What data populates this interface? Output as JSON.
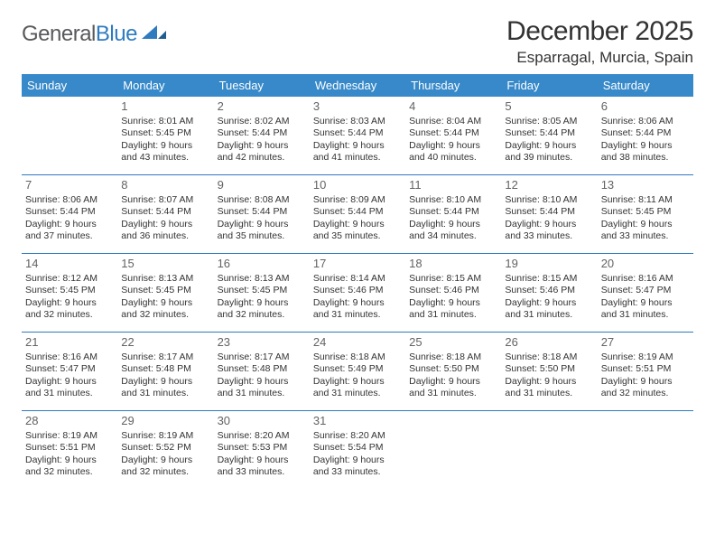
{
  "logo": {
    "text_part1": "General",
    "text_part2": "Blue"
  },
  "title": "December 2025",
  "subtitle": "Esparragal, Murcia, Spain",
  "colors": {
    "header_bg": "#3789c9",
    "header_text": "#ffffff",
    "divider": "#2f7bbf",
    "body_text": "#333333",
    "daynum": "#636363",
    "logo_gray": "#58595b",
    "logo_blue": "#2f7bbf"
  },
  "weekdays": [
    "Sunday",
    "Monday",
    "Tuesday",
    "Wednesday",
    "Thursday",
    "Friday",
    "Saturday"
  ],
  "weeks": [
    [
      {
        "empty": true
      },
      {
        "n": "1",
        "sr": "8:01 AM",
        "ss": "5:45 PM",
        "dl": "9 hours and 43 minutes."
      },
      {
        "n": "2",
        "sr": "8:02 AM",
        "ss": "5:44 PM",
        "dl": "9 hours and 42 minutes."
      },
      {
        "n": "3",
        "sr": "8:03 AM",
        "ss": "5:44 PM",
        "dl": "9 hours and 41 minutes."
      },
      {
        "n": "4",
        "sr": "8:04 AM",
        "ss": "5:44 PM",
        "dl": "9 hours and 40 minutes."
      },
      {
        "n": "5",
        "sr": "8:05 AM",
        "ss": "5:44 PM",
        "dl": "9 hours and 39 minutes."
      },
      {
        "n": "6",
        "sr": "8:06 AM",
        "ss": "5:44 PM",
        "dl": "9 hours and 38 minutes."
      }
    ],
    [
      {
        "n": "7",
        "sr": "8:06 AM",
        "ss": "5:44 PM",
        "dl": "9 hours and 37 minutes."
      },
      {
        "n": "8",
        "sr": "8:07 AM",
        "ss": "5:44 PM",
        "dl": "9 hours and 36 minutes."
      },
      {
        "n": "9",
        "sr": "8:08 AM",
        "ss": "5:44 PM",
        "dl": "9 hours and 35 minutes."
      },
      {
        "n": "10",
        "sr": "8:09 AM",
        "ss": "5:44 PM",
        "dl": "9 hours and 35 minutes."
      },
      {
        "n": "11",
        "sr": "8:10 AM",
        "ss": "5:44 PM",
        "dl": "9 hours and 34 minutes."
      },
      {
        "n": "12",
        "sr": "8:10 AM",
        "ss": "5:44 PM",
        "dl": "9 hours and 33 minutes."
      },
      {
        "n": "13",
        "sr": "8:11 AM",
        "ss": "5:45 PM",
        "dl": "9 hours and 33 minutes."
      }
    ],
    [
      {
        "n": "14",
        "sr": "8:12 AM",
        "ss": "5:45 PM",
        "dl": "9 hours and 32 minutes."
      },
      {
        "n": "15",
        "sr": "8:13 AM",
        "ss": "5:45 PM",
        "dl": "9 hours and 32 minutes."
      },
      {
        "n": "16",
        "sr": "8:13 AM",
        "ss": "5:45 PM",
        "dl": "9 hours and 32 minutes."
      },
      {
        "n": "17",
        "sr": "8:14 AM",
        "ss": "5:46 PM",
        "dl": "9 hours and 31 minutes."
      },
      {
        "n": "18",
        "sr": "8:15 AM",
        "ss": "5:46 PM",
        "dl": "9 hours and 31 minutes."
      },
      {
        "n": "19",
        "sr": "8:15 AM",
        "ss": "5:46 PM",
        "dl": "9 hours and 31 minutes."
      },
      {
        "n": "20",
        "sr": "8:16 AM",
        "ss": "5:47 PM",
        "dl": "9 hours and 31 minutes."
      }
    ],
    [
      {
        "n": "21",
        "sr": "8:16 AM",
        "ss": "5:47 PM",
        "dl": "9 hours and 31 minutes."
      },
      {
        "n": "22",
        "sr": "8:17 AM",
        "ss": "5:48 PM",
        "dl": "9 hours and 31 minutes."
      },
      {
        "n": "23",
        "sr": "8:17 AM",
        "ss": "5:48 PM",
        "dl": "9 hours and 31 minutes."
      },
      {
        "n": "24",
        "sr": "8:18 AM",
        "ss": "5:49 PM",
        "dl": "9 hours and 31 minutes."
      },
      {
        "n": "25",
        "sr": "8:18 AM",
        "ss": "5:50 PM",
        "dl": "9 hours and 31 minutes."
      },
      {
        "n": "26",
        "sr": "8:18 AM",
        "ss": "5:50 PM",
        "dl": "9 hours and 31 minutes."
      },
      {
        "n": "27",
        "sr": "8:19 AM",
        "ss": "5:51 PM",
        "dl": "9 hours and 32 minutes."
      }
    ],
    [
      {
        "n": "28",
        "sr": "8:19 AM",
        "ss": "5:51 PM",
        "dl": "9 hours and 32 minutes."
      },
      {
        "n": "29",
        "sr": "8:19 AM",
        "ss": "5:52 PM",
        "dl": "9 hours and 32 minutes."
      },
      {
        "n": "30",
        "sr": "8:20 AM",
        "ss": "5:53 PM",
        "dl": "9 hours and 33 minutes."
      },
      {
        "n": "31",
        "sr": "8:20 AM",
        "ss": "5:54 PM",
        "dl": "9 hours and 33 minutes."
      },
      {
        "empty": true
      },
      {
        "empty": true
      },
      {
        "empty": true
      }
    ]
  ],
  "labels": {
    "sunrise": "Sunrise: ",
    "sunset": "Sunset: ",
    "daylight": "Daylight: "
  }
}
